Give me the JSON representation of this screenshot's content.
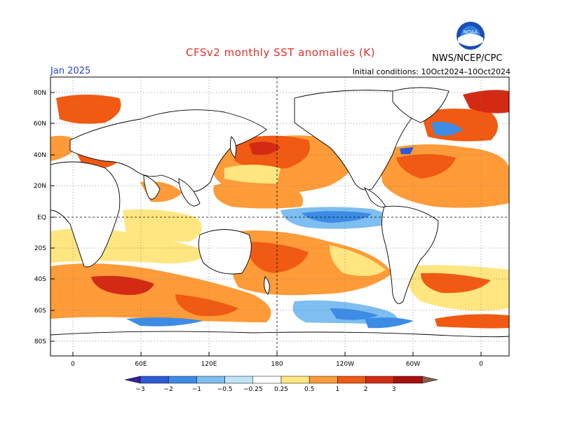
{
  "header": {
    "title": "CFSv2 monthly SST anomalies (K)",
    "agency": "NWS/NCEP/CPC",
    "month": "Jan 2025",
    "initial_conditions": "Initial conditions: 10Oct2024–10Oct2024",
    "logo_text": "NOAA"
  },
  "map": {
    "lat_labels": [
      "80N",
      "60N",
      "40N",
      "20N",
      "EQ",
      "20S",
      "40S",
      "60S",
      "80S"
    ],
    "lon_labels": [
      "0",
      "60E",
      "120E",
      "180",
      "120W",
      "60W",
      "0"
    ]
  },
  "colorbar": {
    "tick_labels": [
      "−3",
      "−2",
      "−1",
      "−0.5",
      "−0.25",
      "0.25",
      "0.5",
      "1",
      "2",
      "3"
    ],
    "colors": [
      "#3a1f9e",
      "#2d5ad6",
      "#3c8ce6",
      "#7ebef0",
      "#bfe3f7",
      "#ffffff",
      "#ffe680",
      "#ff9b38",
      "#f05a12",
      "#d42a14",
      "#a80f0f",
      "#8a5a4a"
    ]
  }
}
